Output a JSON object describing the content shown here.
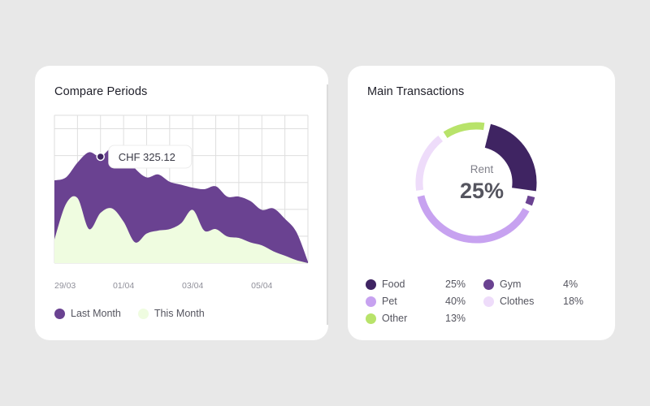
{
  "compare": {
    "title": "Compare Periods",
    "tooltip": "CHF 325.12",
    "legend": [
      {
        "label": "Last Month",
        "color": "#6a4291"
      },
      {
        "label": "This Month",
        "color": "#effce0"
      }
    ]
  },
  "transactions": {
    "title": "Main Transactions",
    "center_label": "Rent",
    "center_value": "25%",
    "legend": [
      {
        "name": "Food",
        "pct": "25%",
        "color": "#3f2462"
      },
      {
        "name": "Gym",
        "pct": "4%",
        "color": "#6a4291"
      },
      {
        "name": "Pet",
        "pct": "40%",
        "color": "#c7a2f0"
      },
      {
        "name": "Clothes",
        "pct": "18%",
        "color": "#eedcfa"
      },
      {
        "name": "Other",
        "pct": "13%",
        "color": "#b8e36a"
      }
    ]
  },
  "chart_data": [
    {
      "type": "area",
      "title": "Compare Periods",
      "x_ticks": [
        "29/03",
        "01/04",
        "03/04",
        "05/04"
      ],
      "grid": true,
      "x": [
        0,
        0.5,
        1,
        1.5,
        2,
        2.5,
        3,
        3.5,
        4,
        4.5,
        5,
        5.5,
        6,
        6.5,
        7,
        7.5,
        8,
        8.5,
        9,
        9.5,
        10,
        10.5,
        11
      ],
      "ylim": [
        0,
        100
      ],
      "series": [
        {
          "name": "Last Month",
          "color": "#6a4291",
          "values": [
            56,
            58,
            68,
            75,
            72,
            78,
            74,
            64,
            58,
            60,
            55,
            53,
            51,
            50,
            52,
            45,
            45,
            42,
            36,
            37,
            30,
            21,
            1
          ]
        },
        {
          "name": "This Month",
          "color": "#effce0",
          "values": [
            16,
            40,
            44,
            23,
            34,
            37,
            28,
            14,
            20,
            22,
            23,
            27,
            36,
            22,
            23,
            18,
            17,
            14,
            12,
            8,
            5,
            2,
            0
          ]
        }
      ],
      "annotation": {
        "text": "CHF 325.12",
        "x": 2,
        "series": "Last Month"
      }
    },
    {
      "type": "pie",
      "title": "Main Transactions",
      "labels": [
        "Food",
        "Gym",
        "Pet",
        "Clothes",
        "Other"
      ],
      "values": [
        25,
        4,
        40,
        18,
        13
      ],
      "colors": [
        "#3f2462",
        "#6a4291",
        "#c7a2f0",
        "#eedcfa",
        "#b8e36a"
      ],
      "center": {
        "label": "Rent",
        "value": "25%"
      }
    }
  ]
}
